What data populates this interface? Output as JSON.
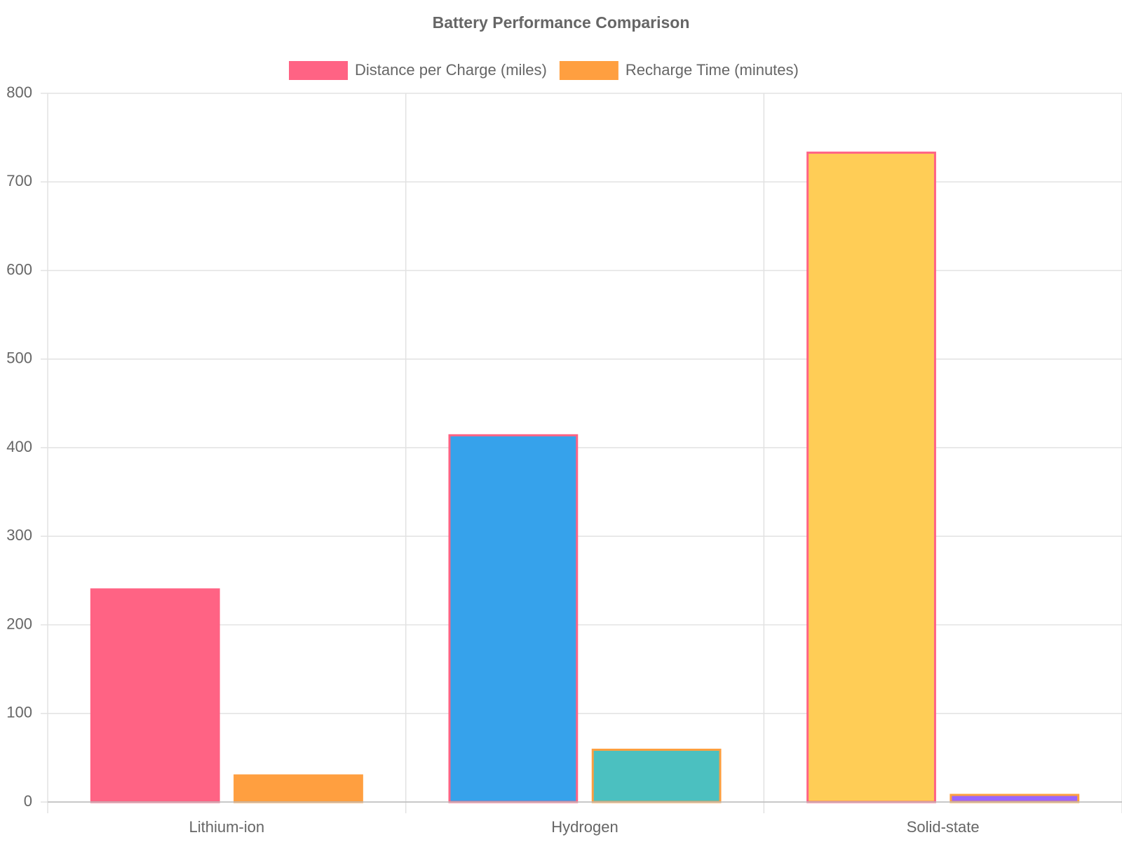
{
  "chart_data": {
    "type": "bar",
    "title": "Battery Performance Comparison",
    "categories": [
      "Lithium-ion",
      "Hydrogen",
      "Solid-state"
    ],
    "series": [
      {
        "name": "Distance per Charge (miles)",
        "color": [
          "#ff6384",
          "#36a2eb",
          "#ffcd56"
        ],
        "border_color": "#ff6384",
        "values": [
          240,
          414,
          733
        ]
      },
      {
        "name": "Recharge Time (minutes)",
        "color": [
          "#ff9f40",
          "#4bc0c0",
          "#9966ff"
        ],
        "border_color": "#ff9f40",
        "values": [
          30,
          59,
          8
        ]
      }
    ],
    "ylim": [
      0,
      800
    ],
    "yticks": [
      0,
      100,
      200,
      300,
      400,
      500,
      600,
      700,
      800
    ],
    "grid": true,
    "legend": "top"
  }
}
